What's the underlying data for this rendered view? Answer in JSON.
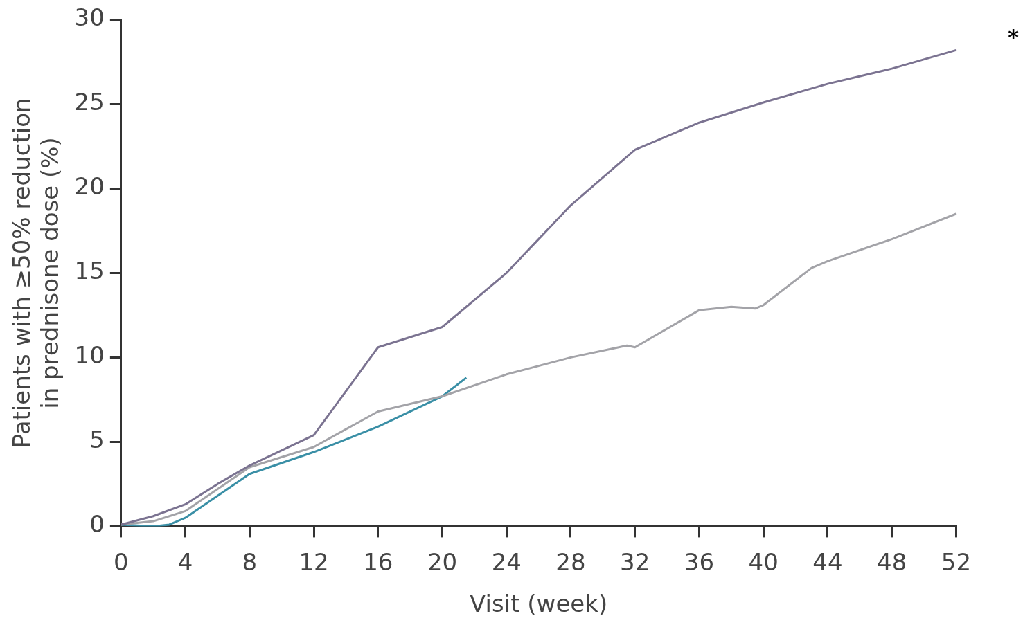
{
  "chart_data": {
    "type": "line",
    "xlabel": "Visit (week)",
    "ylabel": "Patients with ≥50% reduction\nin prednisone dose (%)",
    "annotations": [
      "*"
    ],
    "xlim": [
      0,
      52
    ],
    "xticks": [
      0,
      4,
      8,
      12,
      16,
      20,
      24,
      28,
      32,
      36,
      40,
      44,
      48,
      52
    ],
    "ylim": [
      0,
      30
    ],
    "yticks": [
      0,
      5,
      10,
      15,
      20,
      25,
      30
    ],
    "grid": false,
    "legend": false,
    "marker": "none",
    "line_style": "solid",
    "series": [
      {
        "color": "#7b7391",
        "x": [
          0,
          2,
          4,
          6,
          8,
          12,
          16,
          20,
          24,
          28,
          32,
          36,
          40,
          44,
          48,
          52
        ],
        "values": [
          0.1,
          0.6,
          1.3,
          2.5,
          3.6,
          5.4,
          10.6,
          11.8,
          15.0,
          19.0,
          22.3,
          23.9,
          25.1,
          26.2,
          27.1,
          28.2
        ]
      },
      {
        "color": "#a3a3a8",
        "x": [
          0,
          2,
          4,
          6,
          8,
          12,
          16,
          20,
          24,
          28,
          31.5,
          32,
          36,
          38,
          39.5,
          40,
          43,
          44,
          48,
          52
        ],
        "values": [
          0.1,
          0.3,
          0.9,
          2.2,
          3.5,
          4.7,
          6.8,
          7.7,
          9.0,
          10.0,
          10.7,
          10.6,
          12.8,
          13.0,
          12.9,
          13.1,
          15.3,
          15.7,
          17.0,
          18.5
        ]
      },
      {
        "color": "#3a8fa6",
        "x": [
          0,
          2,
          3,
          4,
          6,
          8,
          12,
          16,
          20,
          21.5
        ],
        "values": [
          0.1,
          0,
          0.1,
          0.5,
          1.8,
          3.1,
          4.4,
          5.9,
          7.7,
          8.8
        ]
      }
    ]
  }
}
